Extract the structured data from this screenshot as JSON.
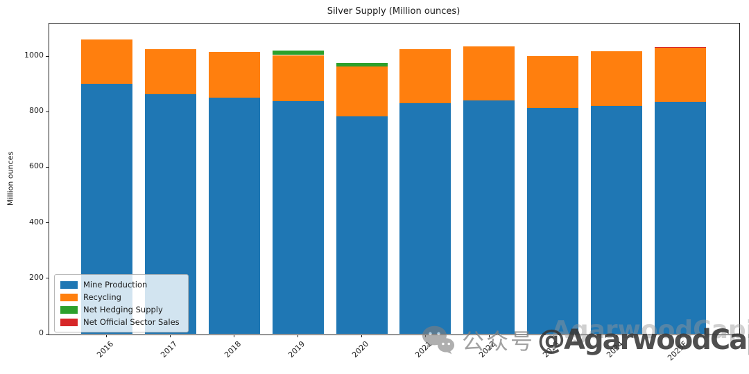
{
  "watermark": {
    "platform_label": "公众号",
    "handle": "@AgarwoodCapital",
    "echo": "AgarwoodCapital"
  },
  "chart_data": {
    "type": "bar",
    "stacked": true,
    "title": "Silver Supply (Million ounces)",
    "xlabel": "",
    "ylabel": "Million ounces",
    "categories": [
      "2016",
      "2017",
      "2018",
      "2019",
      "2020",
      "2021",
      "2022",
      "2023",
      "2024",
      "2025F"
    ],
    "series": [
      {
        "name": "Mine Production",
        "color": "#1f77b4",
        "values": [
          900,
          862,
          850,
          838,
          783,
          830,
          840,
          812,
          820,
          835
        ]
      },
      {
        "name": "Recycling",
        "color": "#ff7f0e",
        "values": [
          160,
          163,
          165,
          166,
          180,
          195,
          196,
          188,
          197,
          194
        ]
      },
      {
        "name": "Net Hedging Supply",
        "color": "#2ca02c",
        "values": [
          0,
          0,
          0,
          15,
          12,
          0,
          0,
          0,
          0,
          0
        ]
      },
      {
        "name": "Net Official Sector Sales",
        "color": "#d62728",
        "values": [
          0,
          0,
          0,
          0,
          0,
          0,
          0,
          0,
          0,
          3
        ]
      }
    ],
    "totals": [
      1060,
      1025,
      1015,
      1019,
      975,
      1025,
      1036,
      1000,
      1017,
      1032
    ],
    "ylim": [
      0,
      1120
    ],
    "yticks": [
      0,
      200,
      400,
      600,
      800,
      1000
    ],
    "grid": false,
    "legend_position": "lower left",
    "x_tick_rotation": 45
  }
}
